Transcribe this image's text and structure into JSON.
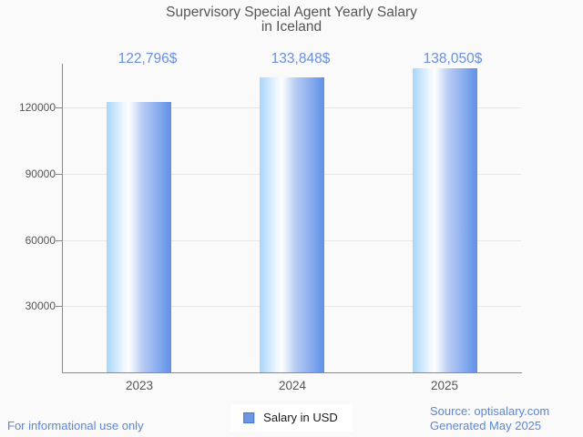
{
  "chart_data": {
    "type": "bar",
    "title": "Supervisory Special Agent Yearly Salary in Iceland",
    "title_lines": [
      "Supervisory Special Agent Yearly Salary",
      "in Iceland"
    ],
    "categories": [
      "2023",
      "2024",
      "2025"
    ],
    "values": [
      122796,
      133848,
      138050
    ],
    "value_labels": [
      "122,796$",
      "133,848$",
      "138,050$"
    ],
    "series": [
      {
        "name": "Salary in USD",
        "values": [
          122796,
          133848,
          138050
        ]
      }
    ],
    "xlabel": "",
    "ylabel": "",
    "yticks": [
      30000,
      60000,
      90000,
      120000
    ],
    "ytick_labels": [
      "30000",
      "60000",
      "90000",
      "120000"
    ],
    "ylim": [
      0,
      140000
    ],
    "grid": true,
    "legend_position": "bottom-center"
  },
  "legend": {
    "label": "Salary in USD"
  },
  "footer": {
    "left": "For informational use only",
    "source": "Source: optisalary.com",
    "generated": "Generated May 2025"
  },
  "colors": {
    "background": "#fafafa",
    "title_text": "#555555",
    "axis_line": "#8a8a8a",
    "gridline": "#e6e6e6",
    "tick_label": "#555555",
    "value_label": "#6890e0",
    "bar_gradient_left": "#a9d6fb",
    "bar_gradient_mid": "#ffffff",
    "bar_gradient_right": "#6090e8",
    "legend_marker_fill": "#6f96e3",
    "legend_marker_border": "#4377cc",
    "legend_text": "#1a1a1a",
    "footer_link": "#5b87da",
    "legend_background": "#ffffff"
  }
}
